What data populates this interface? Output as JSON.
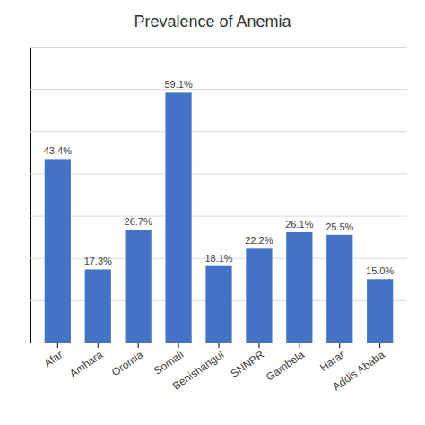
{
  "chart_data": {
    "type": "bar",
    "title": "Prevalence of Anemia",
    "categories": [
      "Afar",
      "Amhara",
      "Oromia",
      "Somali",
      "Benishangul",
      "SNNPR",
      "Gambela",
      "Harar",
      "Addis Ababa"
    ],
    "values": [
      43.4,
      17.3,
      26.7,
      59.1,
      18.1,
      22.2,
      26.1,
      25.5,
      15.0
    ],
    "value_labels": [
      "43.4%",
      "17.3%",
      "26.7%",
      "59.1%",
      "18.1%",
      "22.2%",
      "26.1%",
      "25.5%",
      "15.0%"
    ],
    "data_labels": true,
    "color": "#4472C4",
    "ylim": [
      0,
      70
    ],
    "yticks": [
      0,
      10,
      20,
      30,
      40,
      50,
      60,
      70
    ],
    "grid": true,
    "tick_labels": "x"
  }
}
